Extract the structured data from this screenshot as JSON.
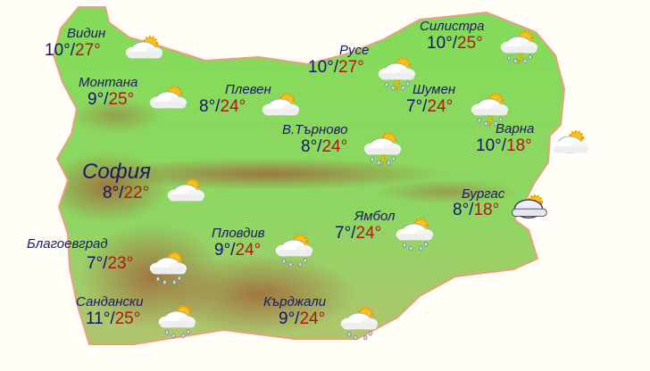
{
  "colors": {
    "low": "#14146a",
    "high": "#b01818",
    "land": "#7ed957",
    "mountain": "#b07a4a",
    "background": "#fffdf5"
  },
  "cities": [
    {
      "name": "Видин",
      "low": "10°",
      "high": "27°",
      "icon": "partly-cloudy"
    },
    {
      "name": "Монтана",
      "low": "9°",
      "high": "25°",
      "icon": "partly-cloudy"
    },
    {
      "name": "Плевен",
      "low": "8°",
      "high": "24°",
      "icon": "partly-cloudy"
    },
    {
      "name": "Русе",
      "low": "10°",
      "high": "27°",
      "icon": "thunderstorm"
    },
    {
      "name": "Силистра",
      "low": "10°",
      "high": "25°",
      "icon": "thunderstorm"
    },
    {
      "name": "Шумен",
      "low": "7°",
      "high": "24°",
      "icon": "thunderstorm"
    },
    {
      "name": "В.Търново",
      "low": "8°",
      "high": "24°",
      "icon": "thunderstorm"
    },
    {
      "name": "Варна",
      "low": "10°",
      "high": "18°",
      "icon": "partly-cloudy"
    },
    {
      "name": "София",
      "low": "8°",
      "high": "22°",
      "icon": "partly-cloudy"
    },
    {
      "name": "Бургас",
      "low": "8°",
      "high": "18°",
      "icon": "cloudy"
    },
    {
      "name": "Ямбол",
      "low": "7°",
      "high": "24°",
      "icon": "rain"
    },
    {
      "name": "Пловдив",
      "low": "9°",
      "high": "24°",
      "icon": "rain"
    },
    {
      "name": "Благоевград",
      "low": "7°",
      "high": "23°",
      "icon": "rain"
    },
    {
      "name": "Сандански",
      "low": "11°",
      "high": "25°",
      "icon": "rain"
    },
    {
      "name": "Кърджали",
      "low": "9°",
      "high": "24°",
      "icon": "rain"
    }
  ]
}
